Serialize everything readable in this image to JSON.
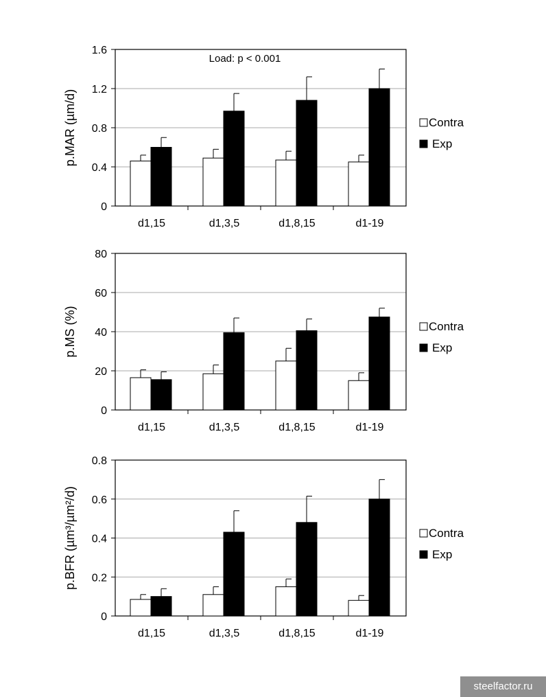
{
  "chart_data": [
    {
      "type": "bar",
      "categories": [
        "d1,15",
        "d1,3,5",
        "d1,8,15",
        "d1-19"
      ],
      "ylabel": "p.MAR (µm/d)",
      "ylim": [
        0,
        1.6
      ],
      "yticks": [
        "0",
        "0.4",
        "0.8",
        "1.2",
        "1.6"
      ],
      "annotation": "Load: p < 0.001",
      "grid": true,
      "legend_position": "right",
      "series": [
        {
          "name": "Contra",
          "color": "#ffffff",
          "values": [
            0.46,
            0.49,
            0.47,
            0.45
          ],
          "errors": [
            0.06,
            0.09,
            0.09,
            0.07
          ]
        },
        {
          "name": "Exp",
          "color": "#000000",
          "values": [
            0.6,
            0.97,
            1.08,
            1.2
          ],
          "errors": [
            0.1,
            0.18,
            0.24,
            0.2
          ]
        }
      ]
    },
    {
      "type": "bar",
      "categories": [
        "d1,15",
        "d1,3,5",
        "d1,8,15",
        "d1-19"
      ],
      "ylabel": "p.MS (%)",
      "ylim": [
        0,
        80
      ],
      "yticks": [
        "0",
        "20",
        "40",
        "60",
        "80"
      ],
      "annotation": "",
      "grid": true,
      "legend_position": "right",
      "series": [
        {
          "name": "Contra",
          "color": "#ffffff",
          "values": [
            16.5,
            18.5,
            25.0,
            15.0
          ],
          "errors": [
            4.0,
            4.5,
            6.5,
            4.0
          ]
        },
        {
          "name": "Exp",
          "color": "#000000",
          "values": [
            15.5,
            39.5,
            40.5,
            47.5
          ],
          "errors": [
            4.0,
            7.5,
            6.0,
            4.5
          ]
        }
      ]
    },
    {
      "type": "bar",
      "categories": [
        "d1,15",
        "d1,3,5",
        "d1,8,15",
        "d1-19"
      ],
      "ylabel": "p.BFR (µm³/µm²/d)",
      "ylim": [
        0,
        0.8
      ],
      "yticks": [
        "0",
        "0.2",
        "0.4",
        "0.6",
        "0.8"
      ],
      "annotation": "",
      "grid": true,
      "legend_position": "right",
      "series": [
        {
          "name": "Contra",
          "color": "#ffffff",
          "values": [
            0.085,
            0.11,
            0.15,
            0.08
          ],
          "errors": [
            0.025,
            0.04,
            0.04,
            0.025
          ]
        },
        {
          "name": "Exp",
          "color": "#000000",
          "values": [
            0.1,
            0.43,
            0.48,
            0.6
          ],
          "errors": [
            0.04,
            0.11,
            0.135,
            0.1
          ]
        }
      ]
    }
  ],
  "watermark": "steelfactor.ru"
}
